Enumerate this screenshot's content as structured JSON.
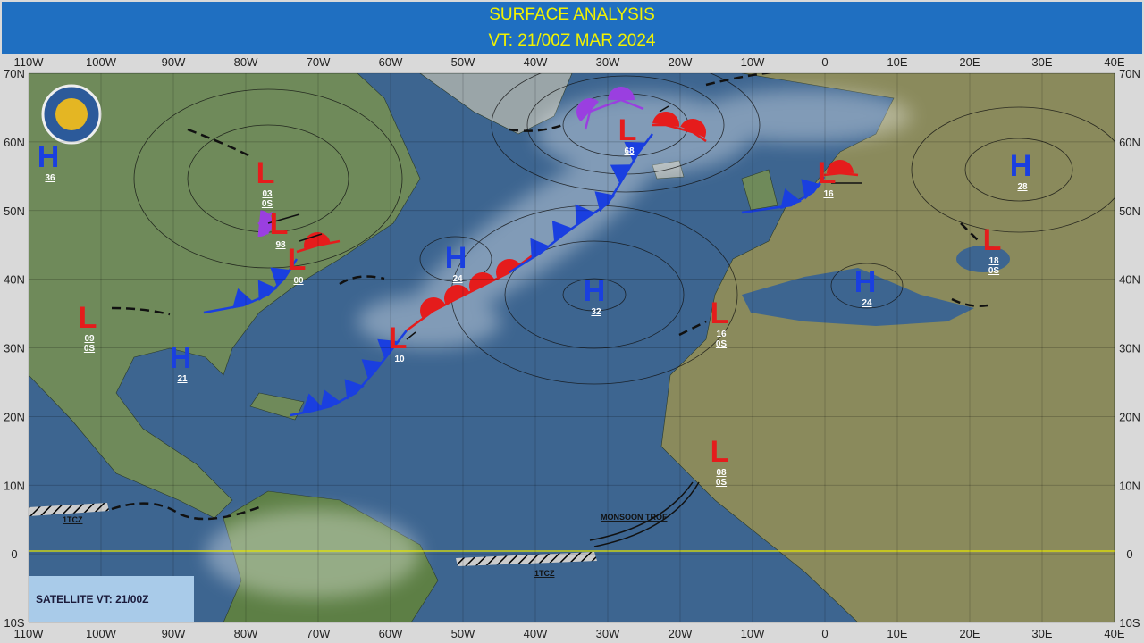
{
  "header": {
    "title": "SURFACE ANALYSIS",
    "valid_time": "VT: 21/00Z MAR 2024"
  },
  "lon_labels": [
    "110W",
    "100W",
    "90W",
    "80W",
    "70W",
    "60W",
    "50W",
    "40W",
    "30W",
    "20W",
    "10W",
    "0",
    "10E",
    "20E",
    "30E",
    "40E"
  ],
  "lat_labels": [
    "70N",
    "60N",
    "50N",
    "40N",
    "30N",
    "20N",
    "10N",
    "0",
    "10S"
  ],
  "centers": [
    {
      "type": "H",
      "value": "36"
    },
    {
      "type": "L",
      "value": "03",
      "sub": "0S"
    },
    {
      "type": "L",
      "value": "98"
    },
    {
      "type": "L",
      "value": "00"
    },
    {
      "type": "L",
      "value": "09",
      "sub": "0S"
    },
    {
      "type": "H",
      "value": "21"
    },
    {
      "type": "L",
      "value": "10"
    },
    {
      "type": "H",
      "value": "24"
    },
    {
      "type": "H",
      "value": "32"
    },
    {
      "type": "L",
      "value": "68"
    },
    {
      "type": "L",
      "value": "16"
    },
    {
      "type": "H",
      "value": "28"
    },
    {
      "type": "L",
      "value": "18",
      "sub": "0S"
    },
    {
      "type": "H",
      "value": "24"
    },
    {
      "type": "L",
      "value": "16",
      "sub": "0S"
    },
    {
      "type": "L",
      "value": "08",
      "sub": "0S"
    }
  ],
  "features": {
    "itcz_west": "1TCZ",
    "itcz_east": "1TCZ",
    "monsoon": "MONSOON TROF"
  },
  "legend": "SATELLITE VT: 21/00Z"
}
